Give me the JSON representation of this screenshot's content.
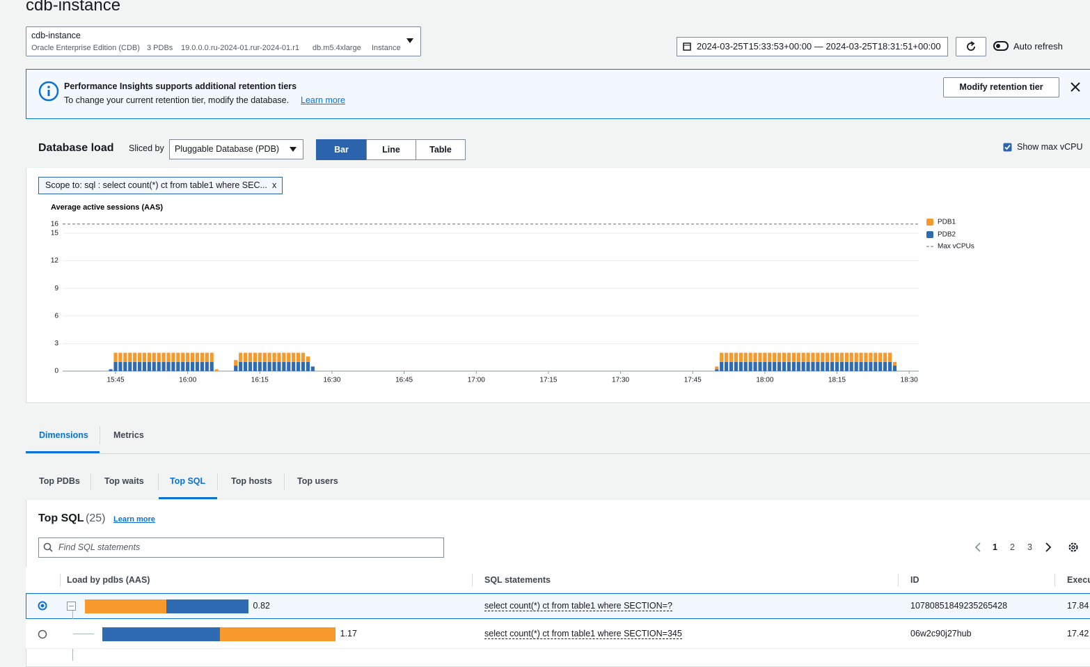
{
  "page": {
    "title": "cdb-instance",
    "instance_select": {
      "name": "cdb-instance",
      "details": [
        "Oracle Enterprise Edition (CDB)",
        "3 PDBs",
        "19.0.0.0.ru-2024-01.rur-2024-01.r1",
        "db.m5.4xlarge",
        "Instance"
      ]
    },
    "time_range": "2024-03-25T15:33:53+00:00 — 2024-03-25T18:31:51+00:00",
    "auto_refresh": "Auto refresh",
    "banner": {
      "title": "Performance Insights supports additional retention tiers",
      "text": "To change your current retention tier, modify the database.",
      "link": "Learn more",
      "button": "Modify retention tier"
    },
    "db_load": {
      "title": "Database load",
      "sliced_by_label": "Sliced by",
      "sliced_by": "Pluggable Database (PDB)",
      "views": [
        "Bar",
        "Line",
        "Table"
      ],
      "show_max_vcpu": "Show max vCPU",
      "scope": "Scope to: sql : select count(*) ct from table1 where SEC...",
      "scope_close": "x"
    },
    "tabs": [
      "Dimensions",
      "Metrics"
    ],
    "subtabs": [
      "Top PDBs",
      "Top waits",
      "Top SQL",
      "Top hosts",
      "Top users"
    ],
    "top_sql": {
      "title": "Top SQL",
      "count": "(25)",
      "learn_more": "Learn more",
      "search_placeholder": "Find SQL statements",
      "pages": [
        1,
        2,
        3
      ],
      "columns": [
        "Load by pdbs (AAS)",
        "SQL statements",
        "ID",
        "Execu"
      ],
      "rows": [
        {
          "load": 0.82,
          "segments": [
            {
              "color": "#f7992b",
              "value": 0.41
            },
            {
              "color": "#2f6bb3",
              "value": 0.41
            }
          ],
          "sql": "select count(*) ct from table1 where SECTION=?",
          "id": "1078085184923526542​8",
          "exec": "17.84"
        },
        {
          "load": 1.17,
          "segments": [
            {
              "color": "#2f6bb3",
              "value": 0.59
            },
            {
              "color": "#f7992b",
              "value": 0.58
            }
          ],
          "sql": "select count(*) ct from table1 where SECTION=345",
          "id": "06w2c90j27hub",
          "exec": "17.42"
        }
      ]
    }
  },
  "chart_data": {
    "type": "bar",
    "stacked": true,
    "ylabel": "Average active sessions (AAS)",
    "x": [
      "15:44",
      "15:45",
      "15:46",
      "15:47",
      "15:48",
      "15:49",
      "15:50",
      "15:51",
      "15:52",
      "15:53",
      "15:54",
      "15:55",
      "15:56",
      "15:57",
      "15:58",
      "15:59",
      "16:00",
      "16:01",
      "16:02",
      "16:03",
      "16:04",
      "16:05",
      "16:06",
      "16:10",
      "16:11",
      "16:12",
      "16:13",
      "16:14",
      "16:15",
      "16:16",
      "16:17",
      "16:18",
      "16:19",
      "16:20",
      "16:21",
      "16:22",
      "16:23",
      "16:24",
      "16:25",
      "16:26",
      "17:50",
      "17:51",
      "17:52",
      "17:53",
      "17:54",
      "17:55",
      "17:56",
      "17:57",
      "17:58",
      "17:59",
      "18:00",
      "18:01",
      "18:02",
      "18:03",
      "18:04",
      "18:05",
      "18:06",
      "18:07",
      "18:08",
      "18:09",
      "18:10",
      "18:11",
      "18:12",
      "18:13",
      "18:14",
      "18:15",
      "18:16",
      "18:17",
      "18:18",
      "18:19",
      "18:20",
      "18:21",
      "18:22",
      "18:23",
      "18:24",
      "18:25",
      "18:26",
      "18:27"
    ],
    "series": [
      {
        "name": "PDB1",
        "color": "#f7992b",
        "values": [
          0,
          1,
          1,
          1,
          1,
          1,
          1,
          1,
          1,
          1,
          1,
          1,
          1,
          1,
          1,
          1,
          1,
          1,
          1,
          1,
          1,
          1,
          0.2,
          0.6,
          1,
          1,
          1,
          1,
          1,
          1,
          1,
          1,
          1,
          1,
          1,
          1,
          1,
          1,
          0.6,
          0,
          0.3,
          1,
          1,
          1,
          1,
          1,
          1,
          1,
          1,
          1,
          1,
          1,
          1,
          1,
          1,
          1,
          1,
          1,
          1,
          1,
          1,
          1,
          1,
          1,
          1,
          1,
          1,
          1,
          1,
          1,
          1,
          1,
          1,
          1,
          1,
          1,
          1,
          0.4
        ]
      },
      {
        "name": "PDB2",
        "color": "#2f6bb3",
        "values": [
          0.2,
          1,
          1,
          1,
          1,
          1,
          1,
          1,
          1,
          1,
          1,
          1,
          1,
          1,
          1,
          1,
          1,
          1,
          1,
          1,
          1,
          1,
          0,
          0.6,
          1,
          1,
          1,
          1,
          1,
          1,
          1,
          1,
          1,
          1,
          1,
          1,
          1,
          1,
          1,
          0.5,
          0.2,
          1,
          1,
          1,
          1,
          1,
          1,
          1,
          1,
          1,
          1,
          1,
          1,
          1,
          1,
          1,
          1,
          1,
          1,
          1,
          1,
          1,
          1,
          1,
          1,
          1,
          1,
          1,
          1,
          1,
          1,
          1,
          1,
          1,
          1,
          1,
          1,
          0.6
        ]
      }
    ],
    "max_vcpu": {
      "name": "Max vCPUs",
      "value": 16,
      "color": "#687078"
    },
    "xlim": [
      "15:34",
      "18:32"
    ],
    "xticks": [
      "15:45",
      "16:00",
      "16:15",
      "16:30",
      "16:45",
      "17:00",
      "17:15",
      "17:30",
      "17:45",
      "18:00",
      "18:15",
      "18:30"
    ],
    "ylim": [
      0,
      16
    ],
    "yticks": [
      0,
      3,
      6,
      9,
      12,
      15,
      16
    ],
    "grid": true,
    "legend": "right"
  }
}
